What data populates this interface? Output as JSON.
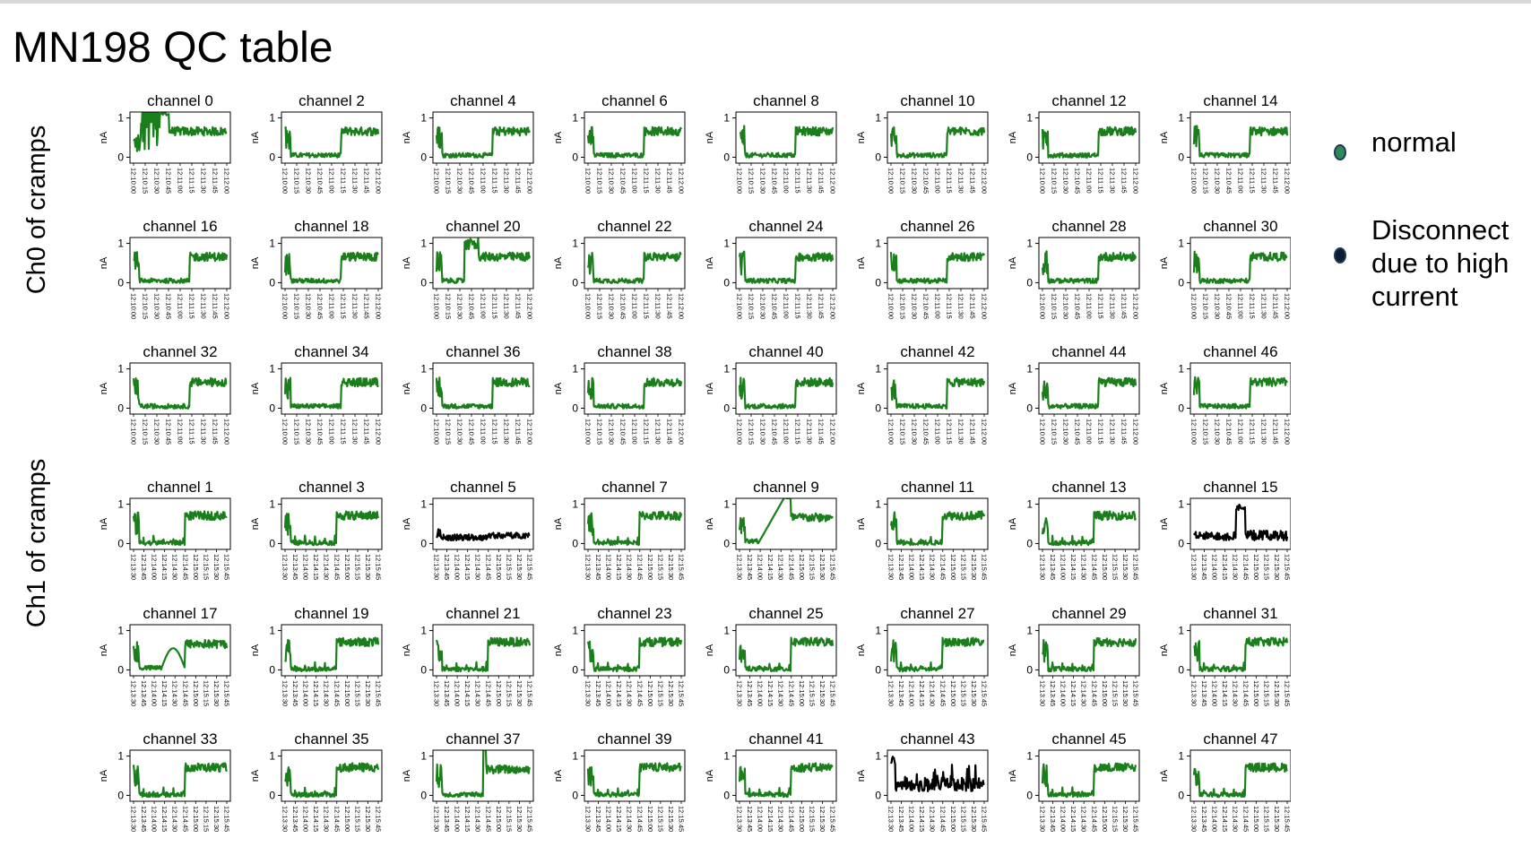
{
  "page": {
    "title": "MN198 QC table"
  },
  "groups": [
    {
      "label": "Ch0 of cramps"
    },
    {
      "label": "Ch1 of cramps"
    }
  ],
  "legend": [
    {
      "label": "normal",
      "color": "#2e8b57"
    },
    {
      "label": "Disconnect\ndue to high\ncurrent",
      "color": "#0b1c33"
    }
  ],
  "colors": {
    "normal": "#1a7f1a",
    "disconnect": "#000000"
  },
  "chart_data": {
    "type": "line",
    "ylabel": "nA",
    "yticks": [
      "0",
      "1"
    ],
    "ylim": [
      -0.15,
      1.15
    ],
    "xticks_ch0": [
      "12:10:00",
      "12:10:15",
      "12:10:30",
      "12:10:45",
      "12:11:00",
      "12:11:15",
      "12:11:30",
      "12:11:45",
      "12:12:00"
    ],
    "xticks_ch1": [
      "12:13:30",
      "12:13:45",
      "12:14:00",
      "12:14:15",
      "12:14:30",
      "12:14:45",
      "12:15:00",
      "12:15:15",
      "12:15:30",
      "12:15:45"
    ],
    "panels_ch0": [
      {
        "title": "channel 0",
        "status": "normal",
        "pattern": "spiky_early"
      },
      {
        "title": "channel 2",
        "status": "normal",
        "pattern": "std0"
      },
      {
        "title": "channel 4",
        "status": "normal",
        "pattern": "std0"
      },
      {
        "title": "channel 6",
        "status": "normal",
        "pattern": "std0"
      },
      {
        "title": "channel 8",
        "status": "normal",
        "pattern": "std0"
      },
      {
        "title": "channel 10",
        "status": "normal",
        "pattern": "std0"
      },
      {
        "title": "channel 12",
        "status": "normal",
        "pattern": "std0"
      },
      {
        "title": "channel 14",
        "status": "normal",
        "pattern": "std0"
      },
      {
        "title": "channel 16",
        "status": "normal",
        "pattern": "std0"
      },
      {
        "title": "channel 18",
        "status": "normal",
        "pattern": "std0"
      },
      {
        "title": "channel 20",
        "status": "normal",
        "pattern": "spike_mid"
      },
      {
        "title": "channel 22",
        "status": "normal",
        "pattern": "std0"
      },
      {
        "title": "channel 24",
        "status": "normal",
        "pattern": "std0"
      },
      {
        "title": "channel 26",
        "status": "normal",
        "pattern": "std0"
      },
      {
        "title": "channel 28",
        "status": "normal",
        "pattern": "std0"
      },
      {
        "title": "channel 30",
        "status": "normal",
        "pattern": "std0"
      },
      {
        "title": "channel 32",
        "status": "normal",
        "pattern": "std0"
      },
      {
        "title": "channel 34",
        "status": "normal",
        "pattern": "std0"
      },
      {
        "title": "channel 36",
        "status": "normal",
        "pattern": "std0"
      },
      {
        "title": "channel 38",
        "status": "normal",
        "pattern": "std0"
      },
      {
        "title": "channel 40",
        "status": "normal",
        "pattern": "std0"
      },
      {
        "title": "channel 42",
        "status": "normal",
        "pattern": "std0"
      },
      {
        "title": "channel 44",
        "status": "normal",
        "pattern": "std0"
      },
      {
        "title": "channel 46",
        "status": "normal",
        "pattern": "std0"
      }
    ],
    "panels_ch1": [
      {
        "title": "channel 1",
        "status": "normal",
        "pattern": "std1"
      },
      {
        "title": "channel 3",
        "status": "normal",
        "pattern": "std1"
      },
      {
        "title": "channel 5",
        "status": "disconnect",
        "pattern": "low_black"
      },
      {
        "title": "channel 7",
        "status": "normal",
        "pattern": "std1"
      },
      {
        "title": "channel 9",
        "status": "normal",
        "pattern": "ramp"
      },
      {
        "title": "channel 11",
        "status": "normal",
        "pattern": "std1"
      },
      {
        "title": "channel 13",
        "status": "normal",
        "pattern": "std1"
      },
      {
        "title": "channel 15",
        "status": "disconnect",
        "pattern": "bump_black"
      },
      {
        "title": "channel 17",
        "status": "normal",
        "pattern": "hump"
      },
      {
        "title": "channel 19",
        "status": "normal",
        "pattern": "std1"
      },
      {
        "title": "channel 21",
        "status": "normal",
        "pattern": "std1"
      },
      {
        "title": "channel 23",
        "status": "normal",
        "pattern": "std1"
      },
      {
        "title": "channel 25",
        "status": "normal",
        "pattern": "std1"
      },
      {
        "title": "channel 27",
        "status": "normal",
        "pattern": "std1"
      },
      {
        "title": "channel 29",
        "status": "normal",
        "pattern": "std1"
      },
      {
        "title": "channel 31",
        "status": "normal",
        "pattern": "std1"
      },
      {
        "title": "channel 33",
        "status": "normal",
        "pattern": "std1"
      },
      {
        "title": "channel 35",
        "status": "normal",
        "pattern": "std1"
      },
      {
        "title": "channel 37",
        "status": "normal",
        "pattern": "spike_thin"
      },
      {
        "title": "channel 39",
        "status": "normal",
        "pattern": "std1"
      },
      {
        "title": "channel 41",
        "status": "normal",
        "pattern": "std1"
      },
      {
        "title": "channel 43",
        "status": "disconnect",
        "pattern": "noisy_black"
      },
      {
        "title": "channel 45",
        "status": "normal",
        "pattern": "std1"
      },
      {
        "title": "channel 47",
        "status": "normal",
        "pattern": "std1"
      }
    ]
  }
}
